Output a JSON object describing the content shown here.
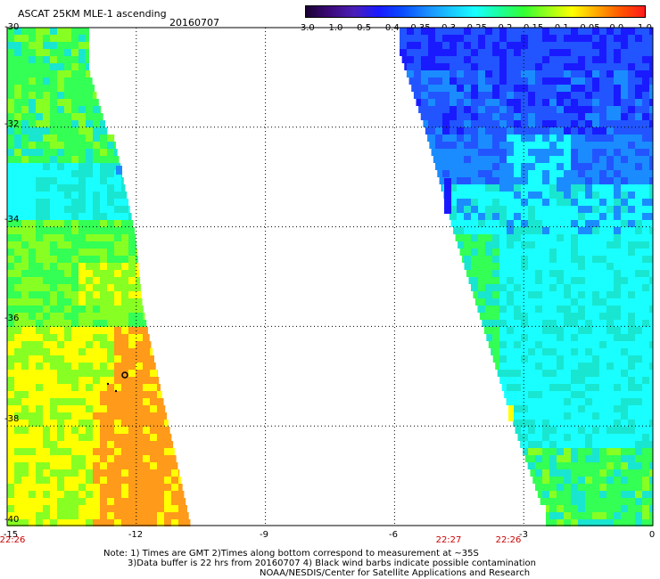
{
  "header": {
    "title": "ASCAT 25KM MLE-1 ascending",
    "date": "20160707"
  },
  "colorbar": {
    "ticks": [
      "-3.0",
      "-1.0",
      "-0.5",
      "-0.4",
      "-0.35",
      "-0.3",
      "-0.25",
      "-0.2",
      "-0.15",
      "-0.1",
      "-0.05",
      "0.0",
      "1.0"
    ],
    "colors": [
      "#1a0033",
      "#3d0a7a",
      "#4b1fb8",
      "#1a1aff",
      "#0a4dff",
      "#1a8cff",
      "#19c8ff",
      "#19ffff",
      "#1aff9c",
      "#33ff33",
      "#99ff1a",
      "#ffff00",
      "#ffaa00",
      "#ff5500",
      "#ff1a1a"
    ]
  },
  "map": {
    "lat_labels": [
      "-30",
      "-32",
      "-34",
      "-36",
      "-38",
      "-40"
    ],
    "lon_labels": [
      "-15",
      "-12",
      "-9",
      "-6",
      "-3",
      "0"
    ],
    "lat_range": [
      -40,
      -30
    ],
    "lon_range": [
      -15,
      0
    ],
    "time_labels": [
      "22:26",
      "22:27",
      "22:26"
    ],
    "palette": {
      "deep_blue": "#1a1aff",
      "blue": "#2255ff",
      "sky": "#1a8cff",
      "cyan": "#19ffff",
      "teal": "#19e6d0",
      "green": "#33ff55",
      "lime": "#88ff22",
      "yellow": "#ffff00",
      "orange": "#ff9a1a"
    }
  },
  "notes": [
    "Note: 1) Times are GMT 2)Times along bottom correspond to measurement at ~35S",
    "3)Data buffer is 22 hrs from 20160707 4) Black wind barbs indicate possible contamination",
    "NOAA/NESDIS/Center for Satellite Applications and Research"
  ]
}
